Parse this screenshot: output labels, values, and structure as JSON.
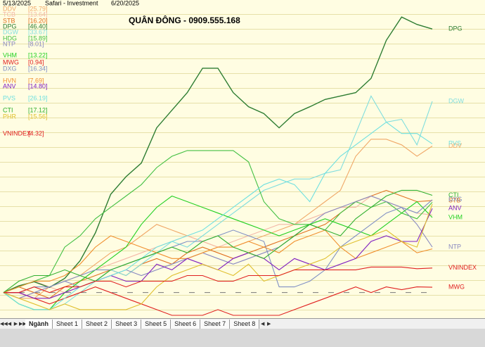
{
  "header": {
    "app": "Safari - Investment"
  },
  "chart_data": {
    "type": "line",
    "title": "QUÂN ĐÔNG - 0909.555.168",
    "categories": [
      "5/13/2025",
      null,
      null,
      null,
      null,
      null,
      null,
      null,
      null,
      null,
      null,
      null,
      null,
      null,
      null,
      null,
      null,
      null,
      null,
      null,
      null,
      null,
      null,
      null,
      null,
      null,
      null,
      null,
      "6/20/2025"
    ],
    "ylim": [
      -4.5,
      51.5
    ],
    "series": [
      {
        "name": "DDV",
        "color": "#f0a868",
        "value_label": "[25.79]",
        "end_label": true,
        "values": [
          0,
          -1,
          -1,
          1,
          2,
          3,
          5,
          7,
          8,
          10,
          12,
          11,
          10,
          9,
          8,
          8,
          9,
          10,
          11,
          12,
          14,
          16,
          18,
          24,
          27,
          27,
          26,
          24,
          25.79
        ]
      },
      {
        "name": "TCB",
        "color": "#f4b8a8",
        "value_label": "[13.64]",
        "end_label": false,
        "values": [
          0,
          1,
          2,
          1,
          0,
          2,
          4,
          5,
          6,
          7,
          8,
          9,
          10,
          9,
          8,
          9,
          10,
          11,
          12,
          12,
          13,
          14,
          15,
          15,
          17,
          16,
          15,
          14,
          13.64
        ]
      },
      {
        "name": "STB",
        "color": "#e07020",
        "value_label": "[16.20]",
        "end_label": true,
        "values": [
          0,
          1,
          0,
          -1,
          1,
          2,
          3,
          4,
          3,
          5,
          6,
          5,
          7,
          8,
          7,
          6,
          7,
          8,
          9,
          10,
          11,
          12,
          14,
          16,
          17,
          18,
          17,
          16,
          16.2
        ]
      },
      {
        "name": "DPG",
        "color": "#2e7d32",
        "value_label": "[46.40]",
        "end_label": true,
        "values": [
          0,
          1.2,
          1.9,
          0.9,
          2.5,
          5.6,
          10.5,
          17.3,
          20.4,
          22.8,
          29,
          32.1,
          35.2,
          39.5,
          39.5,
          35.2,
          32.7,
          31.5,
          29,
          31.5,
          32.7,
          34,
          34.6,
          35.2,
          37.7,
          44.4,
          48.5,
          47.2,
          46.4
        ]
      },
      {
        "name": "DGW",
        "color": "#80dede",
        "value_label": "[33.67]",
        "end_label": true,
        "values": [
          0,
          -2,
          -3,
          -3,
          -2,
          0,
          2,
          4,
          3,
          5,
          7,
          9,
          8,
          10,
          12,
          14,
          16,
          18,
          19,
          20,
          20,
          21,
          21.6,
          28,
          34.6,
          30,
          30.5,
          26,
          33.67
        ]
      },
      {
        "name": "HDG",
        "color": "#44c044",
        "value_label": "[15.89]",
        "end_label": false,
        "values": [
          0,
          1,
          2,
          3,
          8,
          10,
          13,
          15,
          17,
          19,
          22,
          24,
          25,
          25,
          25,
          25,
          23,
          16,
          13,
          12,
          12,
          11,
          14,
          16,
          15,
          16,
          14,
          13,
          15.89
        ]
      },
      {
        "name": "NTP",
        "color": "#8888c0",
        "value_label": "[8.01]",
        "end_label": true,
        "values": [
          0,
          -1,
          0,
          1,
          2,
          1,
          2,
          3,
          4,
          3,
          4,
          5,
          6,
          7,
          6,
          5,
          6,
          7,
          8,
          10,
          12,
          14,
          15,
          16,
          17,
          16,
          15,
          12,
          8.01
        ]
      },
      {
        "name": "VHM",
        "color": "#22d022",
        "value_label": "[13.22]",
        "end_label": true,
        "values": [
          0,
          -2,
          -3,
          -3,
          0,
          2,
          4,
          6,
          8,
          12,
          15,
          17,
          16,
          15,
          14,
          13,
          12,
          11,
          10,
          11,
          12,
          13,
          12,
          11,
          10,
          12,
          14,
          16,
          13.22
        ]
      },
      {
        "name": "MWG",
        "color": "#e02020",
        "value_label": "[0.94]",
        "end_label": true,
        "values": [
          0,
          0,
          -1,
          -2,
          -1,
          0,
          1,
          0,
          -1,
          -2,
          -3,
          -4,
          -4,
          -4,
          -3,
          -4,
          -4,
          -4,
          -4,
          -3,
          -2,
          -1,
          0,
          1,
          0,
          1,
          0.5,
          1,
          0.94
        ]
      },
      {
        "name": "DXG",
        "color": "#8090c4",
        "value_label": "[16.34]",
        "end_label": true,
        "values": [
          0,
          0,
          1,
          1,
          2,
          3,
          4,
          4,
          5,
          6,
          7,
          8,
          9,
          9,
          10,
          11,
          10,
          9,
          1,
          1,
          2,
          4,
          8,
          10,
          12,
          14,
          15,
          14,
          16.34
        ]
      },
      {
        "name": "HVN",
        "color": "#f09030",
        "value_label": "[7.69]",
        "end_label": false,
        "values": [
          0,
          1,
          2,
          2,
          3,
          5,
          8,
          10,
          9,
          8,
          7,
          6,
          6,
          7,
          8,
          8,
          9,
          8,
          7,
          9,
          10,
          11,
          8,
          6,
          7,
          8,
          9,
          7,
          7.69
        ]
      },
      {
        "name": "ANV",
        "color": "#8020c0",
        "value_label": "[14.80]",
        "end_label": true,
        "values": [
          0,
          0,
          -1,
          -1,
          0,
          1,
          2,
          3,
          2,
          2,
          5,
          4,
          6,
          5,
          4,
          6,
          7,
          6,
          4,
          6,
          5,
          4,
          5,
          6,
          9,
          10,
          9,
          9,
          14.8
        ]
      },
      {
        "name": "PVS",
        "color": "#70e0e0",
        "value_label": "[26.19]",
        "end_label": true,
        "values": [
          0,
          -2,
          -3,
          -3,
          -1,
          1,
          2,
          3,
          4,
          6,
          8,
          9,
          10,
          11,
          13,
          15,
          17,
          19,
          20,
          19,
          16,
          21,
          24,
          26,
          28,
          30,
          28,
          28,
          26.19
        ]
      },
      {
        "name": "CTI",
        "color": "#30b030",
        "value_label": "[17.12]",
        "end_label": true,
        "values": [
          0,
          2,
          3,
          3,
          4,
          3,
          2,
          4,
          5,
          6,
          7,
          8,
          7,
          9,
          10,
          8,
          7,
          6,
          8,
          10,
          12,
          11,
          10,
          13,
          15,
          17,
          18,
          18,
          17.12
        ]
      },
      {
        "name": "PHR",
        "color": "#e0c030",
        "value_label": "[15.56]",
        "end_label": false,
        "values": [
          0,
          -1,
          -2,
          -3,
          -2,
          -3,
          -3,
          -3,
          -3,
          -2,
          1,
          3,
          4,
          5,
          4,
          3,
          5,
          2,
          3,
          4,
          5,
          6,
          8,
          9,
          10,
          11,
          9,
          8,
          15.56
        ]
      },
      {
        "name": "VNINDEX",
        "color": "#e02020",
        "value_label": "[4.32]",
        "end_label": true,
        "values": [
          0,
          0,
          1,
          0,
          1,
          1,
          2,
          2,
          1,
          2,
          2,
          2,
          3,
          3,
          2,
          2,
          3,
          3,
          3,
          4,
          4,
          4,
          4,
          4,
          4.5,
          4.5,
          4.5,
          4.2,
          4.32
        ]
      }
    ]
  },
  "tabs": [
    "Ngành",
    "Sheet 1",
    "Sheet 2",
    "Sheet 3",
    "Sheet 5",
    "Sheet 6",
    "Sheet 7",
    "Sheet 8"
  ]
}
